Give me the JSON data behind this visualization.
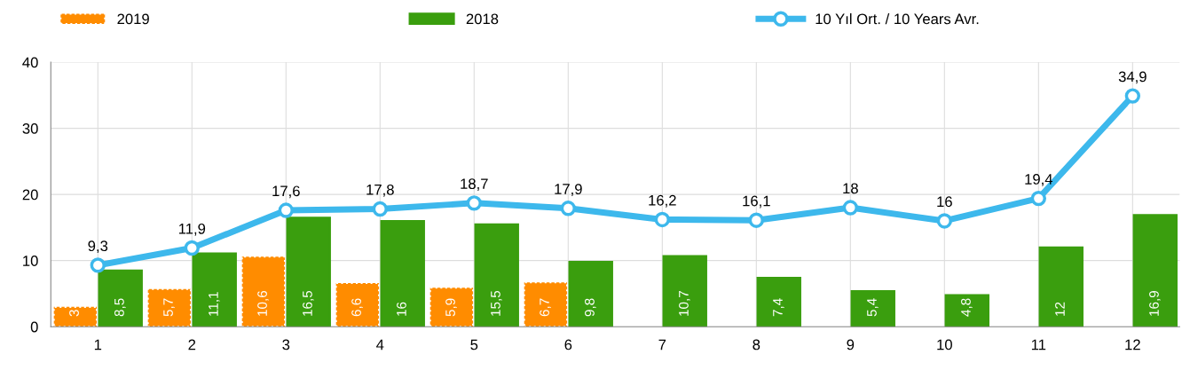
{
  "chart_data": {
    "type": "bar",
    "categories": [
      "1",
      "2",
      "3",
      "4",
      "5",
      "6",
      "7",
      "8",
      "9",
      "10",
      "11",
      "12"
    ],
    "series": [
      {
        "name": "2019",
        "color": "#ff8c00",
        "values": [
          3,
          5.7,
          10.6,
          6.6,
          5.9,
          6.7,
          null,
          null,
          null,
          null,
          null,
          null
        ],
        "value_labels": [
          "3",
          "5,7",
          "10,6",
          "6,6",
          "5,9",
          "6,7",
          null,
          null,
          null,
          null,
          null,
          null
        ]
      },
      {
        "name": "2018",
        "color": "#3a9e0e",
        "values": [
          8.5,
          11.1,
          16.5,
          16,
          15.5,
          9.8,
          10.7,
          7.4,
          5.4,
          4.8,
          12,
          16.9
        ],
        "value_labels": [
          "8,5",
          "11,1",
          "16,5",
          "16",
          "15,5",
          "9,8",
          "10,7",
          "7,4",
          "5,4",
          "4,8",
          "12",
          "16,9"
        ]
      },
      {
        "name": "10 Yıl Ort. / 10 Years Avr.",
        "type": "line",
        "color": "#3db8ec",
        "marker": "circle",
        "values": [
          9.3,
          11.9,
          17.6,
          17.8,
          18.7,
          17.9,
          16.2,
          16.1,
          18,
          16,
          19.4,
          34.9
        ],
        "value_labels": [
          "9,3",
          "11,9",
          "17,6",
          "17,8",
          "18,7",
          "17,9",
          "16,2",
          "16,1",
          "18",
          "16",
          "19,4",
          "34,9"
        ]
      }
    ],
    "ylim": [
      0,
      40
    ],
    "yticks": [
      0,
      10,
      20,
      30,
      40
    ],
    "grid": true,
    "legend": "top"
  }
}
